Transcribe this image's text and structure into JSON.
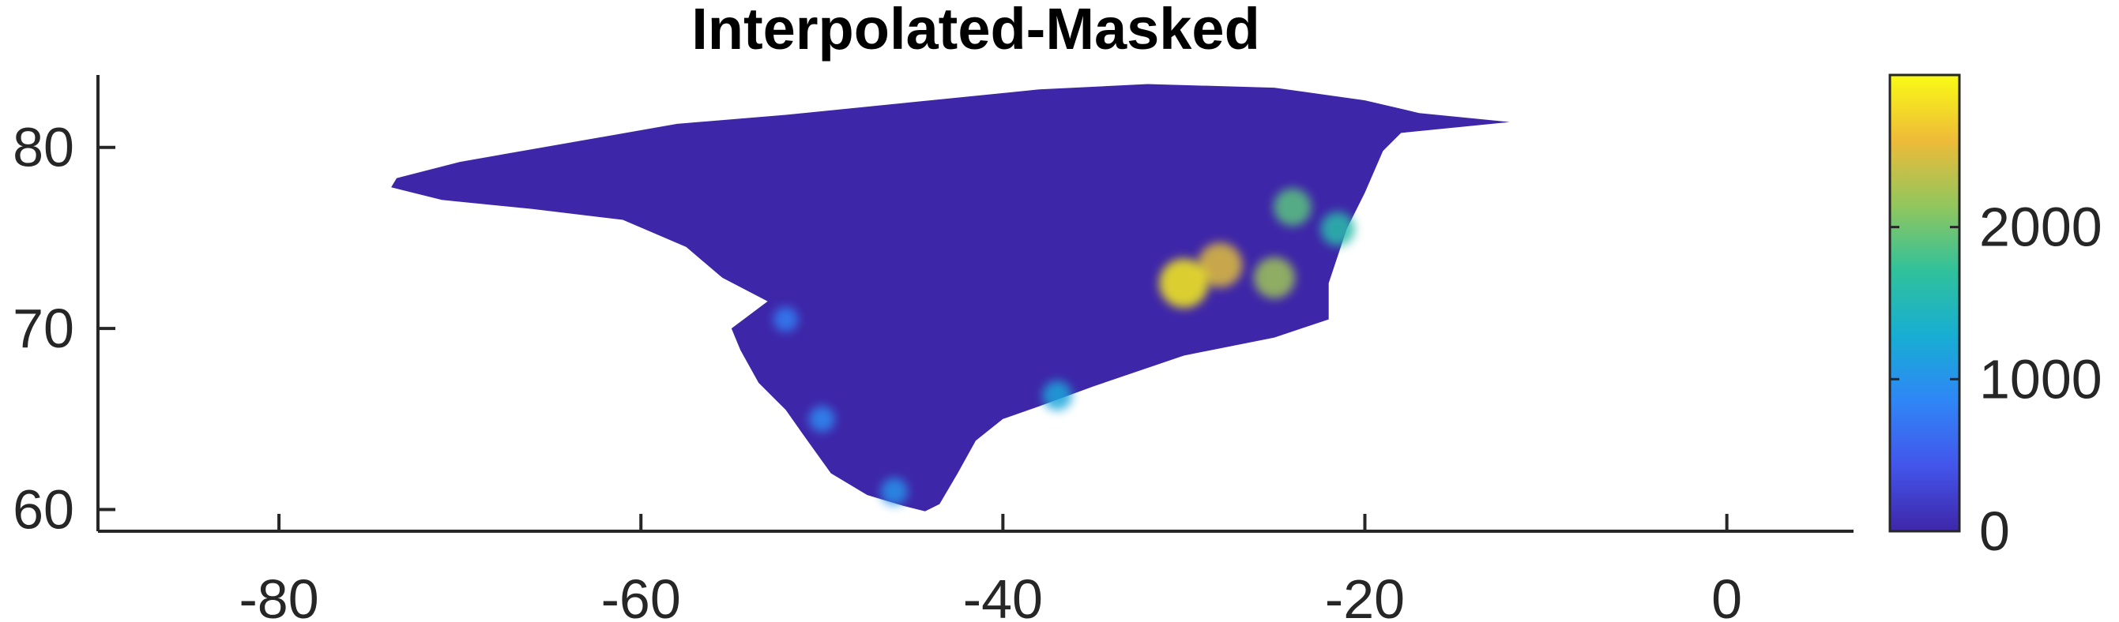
{
  "chart_data": {
    "type": "heatmap",
    "title": "Interpolated-Masked",
    "xlabel": "",
    "ylabel": "",
    "xlim": [
      -90,
      7
    ],
    "ylim": [
      58.8,
      84
    ],
    "x_ticks": [
      -80,
      -60,
      -40,
      -20,
      0
    ],
    "x_tick_labels": [
      "-80",
      "-60",
      "-40",
      "-20",
      "0"
    ],
    "y_ticks": [
      60,
      70,
      80
    ],
    "y_tick_labels": [
      "60",
      "70",
      "80"
    ],
    "grid": false,
    "colormap": "parula",
    "colorbar": {
      "range": [
        0,
        3000
      ],
      "ticks": [
        0,
        1000,
        2000
      ],
      "tick_labels": [
        "0",
        "1000",
        "2000"
      ],
      "colors": [
        "#3e26a8",
        "#4355eb",
        "#2f86f6",
        "#17aed3",
        "#30c19b",
        "#92c65d",
        "#eebb38",
        "#f9fb15"
      ]
    },
    "background_value": 0,
    "background_color": "#3e26a8",
    "outline": [
      [
        -73.5,
        78.3
      ],
      [
        -70,
        79.2
      ],
      [
        -66,
        79.9
      ],
      [
        -62,
        80.6
      ],
      [
        -58,
        81.3
      ],
      [
        -52,
        81.8
      ],
      [
        -45,
        82.5
      ],
      [
        -38,
        83.2
      ],
      [
        -32,
        83.5
      ],
      [
        -25,
        83.3
      ],
      [
        -20,
        82.6
      ],
      [
        -17,
        81.9
      ],
      [
        -12,
        81.4
      ],
      [
        -18,
        80.8
      ],
      [
        -19,
        79.8
      ],
      [
        -20,
        77.5
      ],
      [
        -21,
        75.5
      ],
      [
        -22,
        72.5
      ],
      [
        -22,
        70.5
      ],
      [
        -25,
        69.5
      ],
      [
        -30,
        68.5
      ],
      [
        -35,
        66.8
      ],
      [
        -38,
        65.7
      ],
      [
        -40,
        65.0
      ],
      [
        -41.5,
        63.8
      ],
      [
        -42.5,
        62.0
      ],
      [
        -43.5,
        60.3
      ],
      [
        -44.3,
        59.9
      ],
      [
        -45.5,
        60.2
      ],
      [
        -47.5,
        60.8
      ],
      [
        -49.5,
        62.0
      ],
      [
        -50.8,
        63.8
      ],
      [
        -52,
        65.5
      ],
      [
        -53.5,
        67.0
      ],
      [
        -54.5,
        68.8
      ],
      [
        -55,
        70.0
      ],
      [
        -53,
        71.5
      ],
      [
        -55.5,
        72.8
      ],
      [
        -57.5,
        74.5
      ],
      [
        -61,
        76.0
      ],
      [
        -66,
        76.6
      ],
      [
        -71,
        77.1
      ],
      [
        -73.8,
        77.8
      ]
    ],
    "high_value_zones": [
      {
        "lon": -28,
        "lat": 73.5,
        "value": 2500
      },
      {
        "lon": -25,
        "lat": 72.8,
        "value": 2200
      },
      {
        "lon": -30,
        "lat": 72.5,
        "value": 2900
      },
      {
        "lon": -24,
        "lat": 76.7,
        "value": 1900
      },
      {
        "lon": -21.5,
        "lat": 75.5,
        "value": 1600
      },
      {
        "lon": -37,
        "lat": 66.3,
        "value": 1200
      },
      {
        "lon": -50,
        "lat": 65.0,
        "value": 900
      },
      {
        "lon": -52,
        "lat": 70.5,
        "value": 800
      },
      {
        "lon": -46,
        "lat": 61.0,
        "value": 1000
      }
    ]
  }
}
